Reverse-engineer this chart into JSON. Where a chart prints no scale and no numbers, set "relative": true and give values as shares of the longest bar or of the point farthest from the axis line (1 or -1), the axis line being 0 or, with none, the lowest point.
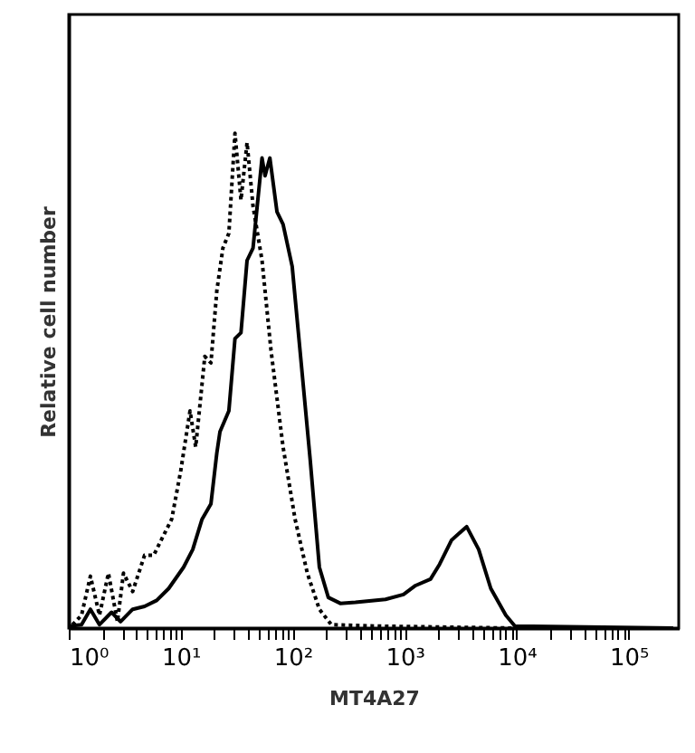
{
  "chart_data": {
    "type": "line",
    "relative": true,
    "log": "x",
    "xlabel": "MT4A27",
    "ylabel": "Relative cell number",
    "grid": false,
    "marker": "none",
    "xlim": [
      1,
      280000
    ],
    "xticks": [
      {
        "value": 1,
        "label": "10⁰"
      },
      {
        "value": 10,
        "label": "10¹"
      },
      {
        "value": 100,
        "label": "10²"
      },
      {
        "value": 1000,
        "label": "10³"
      },
      {
        "value": 10000,
        "label": "10⁴"
      },
      {
        "value": 100000,
        "label": "10⁵"
      },
      {
        "value": 2,
        "label": null
      },
      {
        "value": 3,
        "label": null
      },
      {
        "value": 4,
        "label": null
      },
      {
        "value": 5,
        "label": null
      },
      {
        "value": 6,
        "label": null
      },
      {
        "value": 7,
        "label": null
      },
      {
        "value": 8,
        "label": null
      },
      {
        "value": 9,
        "label": null
      },
      {
        "value": 20,
        "label": null
      },
      {
        "value": 30,
        "label": null
      },
      {
        "value": 40,
        "label": null
      },
      {
        "value": 50,
        "label": null
      },
      {
        "value": 60,
        "label": null
      },
      {
        "value": 70,
        "label": null
      },
      {
        "value": 80,
        "label": null
      },
      {
        "value": 90,
        "label": null
      },
      {
        "value": 200,
        "label": null
      },
      {
        "value": 300,
        "label": null
      },
      {
        "value": 400,
        "label": null
      },
      {
        "value": 500,
        "label": null
      },
      {
        "value": 600,
        "label": null
      },
      {
        "value": 700,
        "label": null
      },
      {
        "value": 800,
        "label": null
      },
      {
        "value": 900,
        "label": null
      },
      {
        "value": 2000,
        "label": null
      },
      {
        "value": 3000,
        "label": null
      },
      {
        "value": 4000,
        "label": null
      },
      {
        "value": 5000,
        "label": null
      },
      {
        "value": 6000,
        "label": null
      },
      {
        "value": 7000,
        "label": null
      },
      {
        "value": 8000,
        "label": null
      },
      {
        "value": 9000,
        "label": null
      },
      {
        "value": 20000,
        "label": null
      },
      {
        "value": 30000,
        "label": null
      },
      {
        "value": 40000,
        "label": null
      },
      {
        "value": 50000,
        "label": null
      },
      {
        "value": 60000,
        "label": null
      },
      {
        "value": 70000,
        "label": null
      },
      {
        "value": 80000,
        "label": null
      },
      {
        "value": 90000,
        "label": null
      }
    ],
    "series": [
      {
        "color": "#000000",
        "line_style": "dotted",
        "x": [
          1.08,
          1.3,
          1.56,
          1.88,
          2.26,
          2.72,
          3.08,
          3.72,
          4.75,
          5.73,
          6.9,
          8.3,
          10,
          12.1,
          13.6,
          16.4,
          18.6,
          21.0,
          23.8,
          26.9,
          30.5,
          34.5,
          39.1,
          44.2,
          53.2,
          64.0,
          82.0,
          105,
          135,
          173,
          221,
          594,
          9550
        ],
        "values": [
          0.007,
          0.026,
          0.105,
          0.026,
          0.111,
          0.013,
          0.111,
          0.074,
          0.147,
          0.147,
          0.184,
          0.22,
          0.318,
          0.439,
          0.366,
          0.549,
          0.536,
          0.682,
          0.768,
          0.798,
          1.0,
          0.865,
          0.981,
          0.853,
          0.743,
          0.561,
          0.366,
          0.22,
          0.111,
          0.038,
          0.007,
          0.004,
          0
        ]
      },
      {
        "color": "#000000",
        "line_style": "solid",
        "x": [
          1.01,
          1.3,
          1.56,
          1.88,
          2.41,
          2.9,
          3.72,
          4.75,
          6.1,
          7.8,
          10.6,
          12.8,
          15.5,
          18.6,
          21.0,
          22.4,
          26.9,
          30.5,
          34.5,
          39.1,
          44.2,
          53.2,
          56.6,
          62.5,
          72.4,
          82.0,
          98.9,
          119,
          143,
          173,
          208,
          266,
          363,
          673,
          975,
          1250,
          1700,
          2050,
          2625,
          3575,
          4580,
          5875,
          8000,
          9640,
          250000
        ],
        "values": [
          0.004,
          0.007,
          0.038,
          0.007,
          0.032,
          0.013,
          0.038,
          0.044,
          0.056,
          0.08,
          0.123,
          0.159,
          0.22,
          0.251,
          0.354,
          0.397,
          0.439,
          0.585,
          0.597,
          0.743,
          0.768,
          0.95,
          0.914,
          0.95,
          0.841,
          0.816,
          0.731,
          0.536,
          0.342,
          0.123,
          0.062,
          0.05,
          0.052,
          0.058,
          0.068,
          0.086,
          0.099,
          0.129,
          0.178,
          0.205,
          0.159,
          0.08,
          0.026,
          0.004,
          0
        ]
      }
    ]
  }
}
